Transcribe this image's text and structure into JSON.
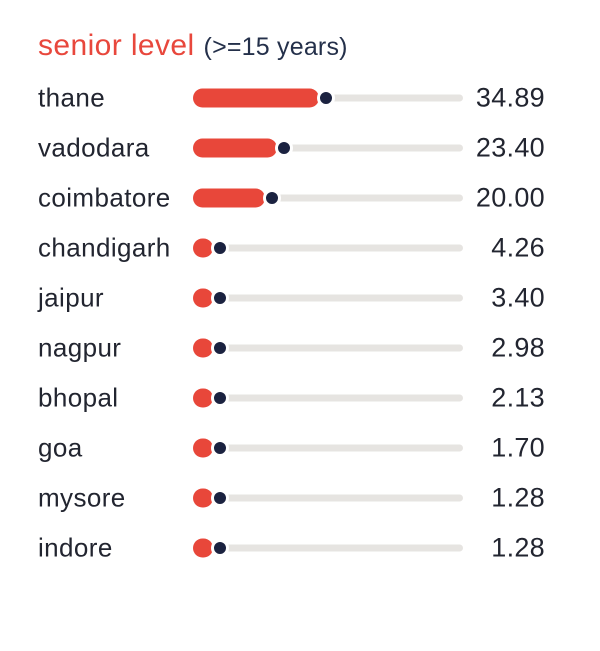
{
  "header": {
    "title": "senior level",
    "subtitle": "(>=15 years)"
  },
  "colors": {
    "accent_red": "#e8473a",
    "dot_navy": "#1b2240",
    "track_gray": "#e6e4e1",
    "text_dark": "#222530",
    "title_red": "#e8473c",
    "title_navy": "#24304a"
  },
  "chart_data": {
    "type": "bar",
    "orientation": "horizontal",
    "title": "senior level (>=15 years)",
    "categories": [
      "thane",
      "vadodara",
      "coimbatore",
      "chandigarh",
      "jaipur",
      "nagpur",
      "bhopal",
      "goa",
      "mysore",
      "indore"
    ],
    "values": [
      34.89,
      23.4,
      20.0,
      4.26,
      3.4,
      2.98,
      2.13,
      1.7,
      1.28,
      1.28
    ],
    "value_labels": [
      "34.89",
      "23.40",
      "20.00",
      "4.26",
      "3.40",
      "2.98",
      "2.13",
      "1.70",
      "1.28",
      "1.28"
    ],
    "xlabel": "",
    "ylabel": "",
    "xlim": [
      0,
      75
    ],
    "grid": false,
    "legend": false,
    "marker_style": "navy dot with white ring at end of red rounded bar over light gray track"
  }
}
